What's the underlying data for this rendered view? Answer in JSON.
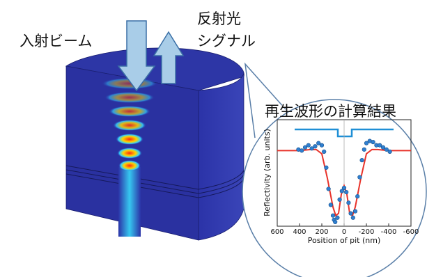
{
  "labels": {
    "incident_beam": "入射ビーム",
    "reflected_signal": [
      "反射光",
      "シグナル"
    ]
  },
  "chart_data": {
    "type": "scatter",
    "title": "再生波形の計算結果",
    "x_label": "Position of pit (nm)",
    "y_label": "Reflectivity (arb. units)",
    "xlim": [
      600,
      -600
    ],
    "ylim": [
      0,
      1
    ],
    "xticks": [
      600,
      400,
      200,
      0,
      -200,
      -400,
      -600
    ],
    "series": [
      {
        "style": "line",
        "color": "#e8322a",
        "x": [
          600,
          400,
          300,
          250,
          200,
          150,
          100,
          75,
          50,
          25,
          0,
          -25,
          -50,
          -75,
          -100,
          -150,
          -200,
          -250,
          -300,
          -400,
          -600
        ],
        "values": [
          0.71,
          0.71,
          0.72,
          0.72,
          0.68,
          0.45,
          0.18,
          0.1,
          0.12,
          0.3,
          0.38,
          0.3,
          0.12,
          0.1,
          0.18,
          0.45,
          0.68,
          0.72,
          0.72,
          0.71,
          0.71
        ]
      },
      {
        "style": "marker",
        "color": "#2f7fd0",
        "x": [
          410,
          380,
          350,
          320,
          290,
          260,
          230,
          200,
          180,
          160,
          140,
          120,
          100,
          90,
          80,
          60,
          40,
          20,
          0,
          -20,
          -40,
          -60,
          -80,
          -100,
          -120,
          -140,
          -160,
          -180,
          -200,
          -230,
          -260,
          -290,
          -320,
          -350,
          -380,
          -410
        ],
        "values": [
          0.72,
          0.71,
          0.74,
          0.76,
          0.73,
          0.75,
          0.78,
          0.76,
          0.7,
          0.55,
          0.35,
          0.2,
          0.1,
          0.06,
          0.04,
          0.08,
          0.25,
          0.33,
          0.36,
          0.32,
          0.22,
          0.12,
          0.08,
          0.14,
          0.28,
          0.46,
          0.62,
          0.72,
          0.78,
          0.8,
          0.79,
          0.76,
          0.76,
          0.74,
          0.72,
          0.7
        ]
      }
    ]
  }
}
